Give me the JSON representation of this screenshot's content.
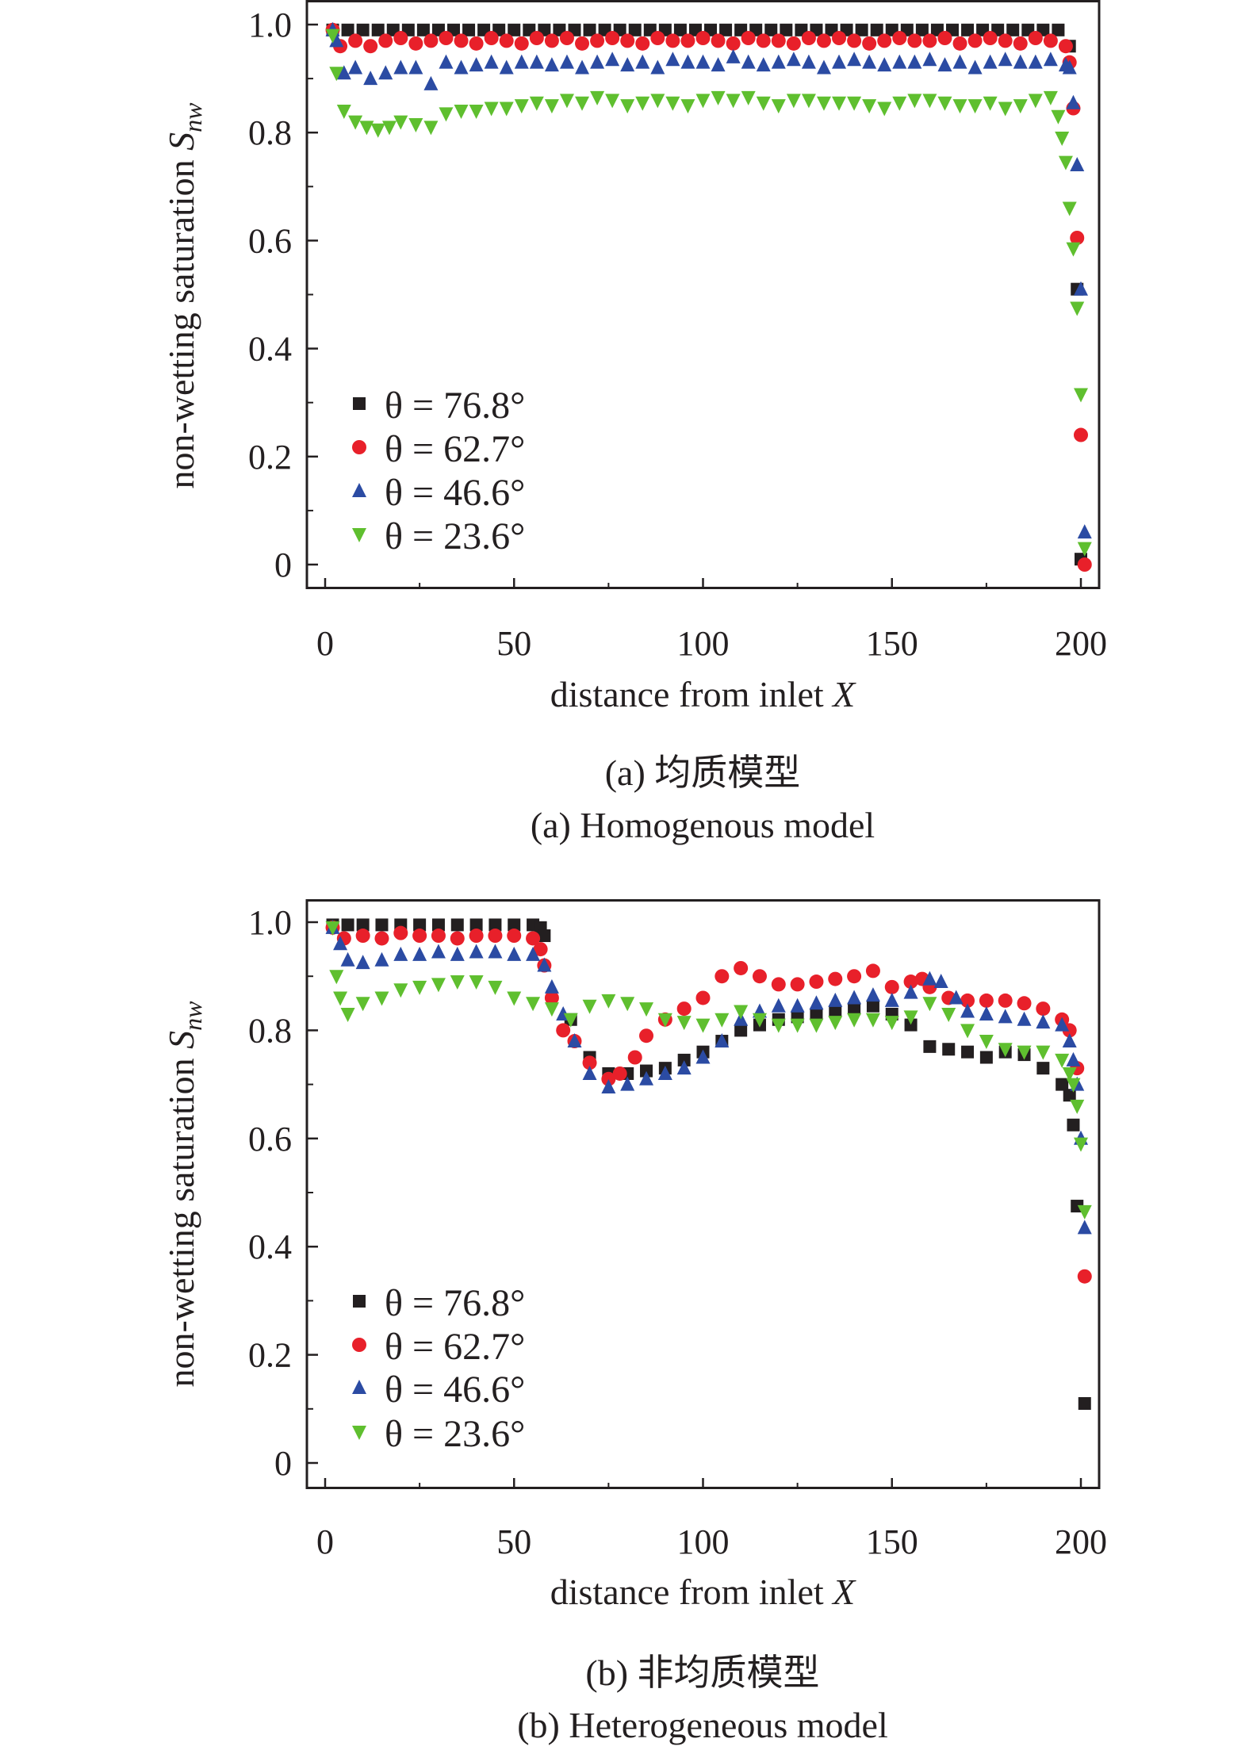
{
  "colors": {
    "black": "#231f20",
    "red": "#e8202a",
    "blue": "#2b4ba3",
    "green": "#5fbf2f"
  },
  "chart_data": [
    {
      "type": "scatter",
      "caption_cn": "(a) 均质模型",
      "caption_en": "(a) Homogenous model",
      "xlabel": "distance from inlet ",
      "xlabel_var": "X",
      "ylabel": "non-wetting saturation ",
      "ylabel_var": "S",
      "ylabel_sub": "nw",
      "xlim": [
        0,
        200
      ],
      "ylim": [
        0,
        1.0
      ],
      "xticks": [
        "0",
        "50",
        "100",
        "150",
        "200"
      ],
      "yticks": [
        "0",
        "0.2",
        "0.4",
        "0.6",
        "0.8",
        "1.0"
      ],
      "legend": "bottom-left",
      "grid": false,
      "series": [
        {
          "name": "θ = 76.8°",
          "marker": "square",
          "color": "#231f20",
          "x": [
            2,
            6,
            10,
            14,
            18,
            22,
            26,
            30,
            34,
            38,
            42,
            46,
            50,
            54,
            58,
            62,
            66,
            70,
            74,
            78,
            82,
            86,
            90,
            94,
            98,
            102,
            106,
            110,
            114,
            118,
            122,
            126,
            130,
            134,
            138,
            142,
            146,
            150,
            154,
            158,
            162,
            166,
            170,
            174,
            178,
            182,
            186,
            190,
            194,
            197,
            199,
            200
          ],
          "y": [
            0.99,
            0.99,
            0.99,
            0.99,
            0.99,
            0.99,
            0.99,
            0.99,
            0.99,
            0.99,
            0.99,
            0.99,
            0.99,
            0.99,
            0.99,
            0.99,
            0.99,
            0.99,
            0.99,
            0.99,
            0.99,
            0.99,
            0.99,
            0.99,
            0.99,
            0.99,
            0.99,
            0.99,
            0.99,
            0.99,
            0.99,
            0.99,
            0.99,
            0.99,
            0.99,
            0.99,
            0.99,
            0.99,
            0.99,
            0.99,
            0.99,
            0.99,
            0.99,
            0.99,
            0.99,
            0.99,
            0.99,
            0.99,
            0.99,
            0.96,
            0.51,
            0.01
          ]
        },
        {
          "name": "θ = 62.7°",
          "marker": "circle",
          "color": "#e8202a",
          "x": [
            2,
            4,
            8,
            12,
            16,
            20,
            24,
            28,
            32,
            36,
            40,
            44,
            48,
            52,
            56,
            60,
            64,
            68,
            72,
            76,
            80,
            84,
            88,
            92,
            96,
            100,
            104,
            108,
            112,
            116,
            120,
            124,
            128,
            132,
            136,
            140,
            144,
            148,
            152,
            156,
            160,
            164,
            168,
            172,
            176,
            180,
            184,
            188,
            192,
            196,
            197,
            198,
            199,
            200,
            201
          ],
          "y": [
            0.99,
            0.96,
            0.97,
            0.96,
            0.97,
            0.975,
            0.965,
            0.97,
            0.975,
            0.97,
            0.965,
            0.975,
            0.97,
            0.965,
            0.975,
            0.97,
            0.975,
            0.965,
            0.97,
            0.975,
            0.97,
            0.965,
            0.975,
            0.97,
            0.97,
            0.975,
            0.97,
            0.965,
            0.975,
            0.97,
            0.97,
            0.965,
            0.975,
            0.97,
            0.975,
            0.97,
            0.965,
            0.97,
            0.975,
            0.97,
            0.97,
            0.975,
            0.965,
            0.97,
            0.975,
            0.97,
            0.965,
            0.975,
            0.97,
            0.96,
            0.93,
            0.845,
            0.605,
            0.24,
            0.0
          ]
        },
        {
          "name": "θ = 46.6°",
          "marker": "triangle-up",
          "color": "#2b4ba3",
          "x": [
            2,
            3,
            5,
            8,
            12,
            16,
            20,
            24,
            28,
            32,
            36,
            40,
            44,
            48,
            52,
            56,
            60,
            64,
            68,
            72,
            76,
            80,
            84,
            88,
            92,
            96,
            100,
            104,
            108,
            112,
            116,
            120,
            124,
            128,
            132,
            136,
            140,
            144,
            148,
            152,
            156,
            160,
            164,
            168,
            172,
            176,
            180,
            184,
            188,
            192,
            196,
            197,
            198,
            199,
            200,
            201
          ],
          "y": [
            0.99,
            0.97,
            0.91,
            0.92,
            0.9,
            0.91,
            0.92,
            0.92,
            0.89,
            0.93,
            0.92,
            0.925,
            0.93,
            0.92,
            0.93,
            0.93,
            0.925,
            0.93,
            0.92,
            0.93,
            0.935,
            0.925,
            0.93,
            0.92,
            0.935,
            0.93,
            0.93,
            0.925,
            0.94,
            0.93,
            0.925,
            0.93,
            0.935,
            0.93,
            0.92,
            0.93,
            0.935,
            0.93,
            0.925,
            0.93,
            0.93,
            0.935,
            0.925,
            0.93,
            0.92,
            0.93,
            0.935,
            0.93,
            0.93,
            0.935,
            0.925,
            0.92,
            0.855,
            0.74,
            0.51,
            0.06
          ]
        },
        {
          "name": "θ = 23.6°",
          "marker": "triangle-down",
          "color": "#5fbf2f",
          "x": [
            2,
            3,
            5,
            8,
            11,
            14,
            17,
            20,
            24,
            28,
            32,
            36,
            40,
            44,
            48,
            52,
            56,
            60,
            64,
            68,
            72,
            76,
            80,
            84,
            88,
            92,
            96,
            100,
            104,
            108,
            112,
            116,
            120,
            124,
            128,
            132,
            136,
            140,
            144,
            148,
            152,
            156,
            160,
            164,
            168,
            172,
            176,
            180,
            184,
            188,
            192,
            194,
            195,
            196,
            197,
            198,
            199,
            200,
            201
          ],
          "y": [
            0.98,
            0.91,
            0.84,
            0.82,
            0.81,
            0.805,
            0.81,
            0.82,
            0.815,
            0.81,
            0.835,
            0.84,
            0.84,
            0.845,
            0.845,
            0.85,
            0.855,
            0.85,
            0.86,
            0.855,
            0.865,
            0.86,
            0.85,
            0.855,
            0.86,
            0.855,
            0.85,
            0.86,
            0.865,
            0.86,
            0.865,
            0.855,
            0.85,
            0.86,
            0.86,
            0.855,
            0.855,
            0.855,
            0.85,
            0.845,
            0.855,
            0.86,
            0.86,
            0.855,
            0.85,
            0.85,
            0.855,
            0.845,
            0.85,
            0.86,
            0.865,
            0.83,
            0.79,
            0.745,
            0.66,
            0.585,
            0.475,
            0.315,
            0.03
          ]
        }
      ]
    },
    {
      "type": "scatter",
      "caption_cn": "(b) 非均质模型",
      "caption_en": "(b) Heterogeneous model",
      "xlabel": "distance from inlet ",
      "xlabel_var": "X",
      "ylabel": "non-wetting saturation ",
      "ylabel_var": "S",
      "ylabel_sub": "nw",
      "xlim": [
        0,
        200
      ],
      "ylim": [
        0,
        1.0
      ],
      "xticks": [
        "0",
        "50",
        "100",
        "150",
        "200"
      ],
      "yticks": [
        "0",
        "0.2",
        "0.4",
        "0.6",
        "0.8",
        "1.0"
      ],
      "legend": "bottom-left",
      "grid": false,
      "series": [
        {
          "name": "θ = 76.8°",
          "marker": "square",
          "color": "#231f20",
          "x": [
            2,
            6,
            10,
            15,
            20,
            25,
            30,
            35,
            40,
            45,
            50,
            55,
            57,
            58,
            65,
            70,
            75,
            80,
            85,
            90,
            95,
            100,
            105,
            110,
            115,
            120,
            125,
            130,
            135,
            140,
            145,
            150,
            155,
            160,
            165,
            170,
            175,
            180,
            185,
            190,
            195,
            197,
            198,
            199,
            201
          ],
          "y": [
            0.995,
            0.995,
            0.995,
            0.995,
            0.995,
            0.995,
            0.995,
            0.995,
            0.995,
            0.995,
            0.995,
            0.995,
            0.99,
            0.975,
            0.82,
            0.75,
            0.72,
            0.72,
            0.725,
            0.73,
            0.745,
            0.76,
            0.78,
            0.8,
            0.81,
            0.82,
            0.825,
            0.83,
            0.835,
            0.84,
            0.845,
            0.83,
            0.81,
            0.77,
            0.765,
            0.76,
            0.75,
            0.76,
            0.755,
            0.73,
            0.7,
            0.68,
            0.625,
            0.475,
            0.11
          ]
        },
        {
          "name": "θ = 62.7°",
          "marker": "circle",
          "color": "#e8202a",
          "x": [
            2,
            5,
            10,
            15,
            20,
            25,
            30,
            35,
            40,
            45,
            50,
            55,
            57,
            58,
            60,
            63,
            66,
            70,
            75,
            78,
            82,
            85,
            90,
            95,
            100,
            105,
            110,
            115,
            120,
            125,
            130,
            135,
            140,
            145,
            150,
            155,
            158,
            160,
            165,
            170,
            175,
            180,
            185,
            190,
            195,
            197,
            199,
            201
          ],
          "y": [
            0.99,
            0.97,
            0.975,
            0.97,
            0.98,
            0.975,
            0.975,
            0.97,
            0.975,
            0.975,
            0.975,
            0.97,
            0.95,
            0.92,
            0.86,
            0.8,
            0.78,
            0.74,
            0.71,
            0.72,
            0.75,
            0.79,
            0.82,
            0.84,
            0.86,
            0.9,
            0.915,
            0.9,
            0.885,
            0.885,
            0.89,
            0.895,
            0.9,
            0.91,
            0.88,
            0.89,
            0.895,
            0.88,
            0.86,
            0.855,
            0.855,
            0.855,
            0.85,
            0.84,
            0.82,
            0.8,
            0.73,
            0.345
          ]
        },
        {
          "name": "θ = 46.6°",
          "marker": "triangle-up",
          "color": "#2b4ba3",
          "x": [
            2,
            4,
            6,
            10,
            15,
            20,
            25,
            30,
            35,
            40,
            45,
            50,
            55,
            58,
            60,
            63,
            66,
            70,
            75,
            80,
            85,
            90,
            95,
            100,
            105,
            110,
            115,
            120,
            125,
            130,
            135,
            140,
            145,
            150,
            155,
            160,
            163,
            167,
            170,
            175,
            180,
            185,
            190,
            195,
            197,
            198,
            199,
            200,
            201
          ],
          "y": [
            0.99,
            0.96,
            0.93,
            0.925,
            0.93,
            0.94,
            0.94,
            0.945,
            0.94,
            0.945,
            0.945,
            0.94,
            0.94,
            0.92,
            0.88,
            0.83,
            0.78,
            0.72,
            0.695,
            0.7,
            0.71,
            0.72,
            0.73,
            0.75,
            0.78,
            0.82,
            0.835,
            0.845,
            0.845,
            0.85,
            0.855,
            0.86,
            0.865,
            0.855,
            0.87,
            0.895,
            0.89,
            0.86,
            0.835,
            0.83,
            0.825,
            0.82,
            0.815,
            0.81,
            0.78,
            0.745,
            0.7,
            0.6,
            0.435
          ]
        },
        {
          "name": "θ = 23.6°",
          "marker": "triangle-down",
          "color": "#5fbf2f",
          "x": [
            2,
            3,
            4,
            6,
            10,
            15,
            20,
            25,
            30,
            35,
            40,
            45,
            50,
            55,
            60,
            65,
            70,
            75,
            80,
            85,
            90,
            95,
            100,
            105,
            110,
            115,
            120,
            125,
            130,
            135,
            140,
            145,
            150,
            155,
            160,
            165,
            170,
            175,
            180,
            185,
            190,
            195,
            197,
            198,
            199,
            200,
            201
          ],
          "y": [
            0.99,
            0.9,
            0.86,
            0.83,
            0.85,
            0.86,
            0.875,
            0.88,
            0.885,
            0.89,
            0.89,
            0.88,
            0.86,
            0.85,
            0.84,
            0.82,
            0.845,
            0.855,
            0.85,
            0.84,
            0.82,
            0.815,
            0.81,
            0.82,
            0.835,
            0.82,
            0.81,
            0.81,
            0.81,
            0.815,
            0.82,
            0.82,
            0.815,
            0.825,
            0.85,
            0.83,
            0.8,
            0.78,
            0.765,
            0.76,
            0.76,
            0.745,
            0.72,
            0.7,
            0.66,
            0.59,
            0.465
          ]
        }
      ]
    }
  ]
}
